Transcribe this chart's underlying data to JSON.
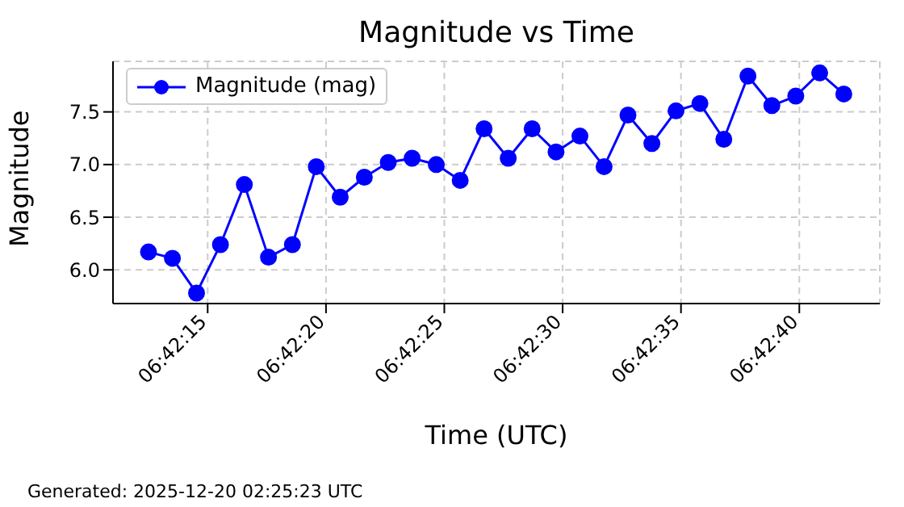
{
  "chart_data": {
    "type": "line",
    "title": "Magnitude vs Time",
    "xlabel": "Time (UTC)",
    "ylabel": "Magnitude",
    "annotations": [
      "Generated: 2025-12-20 02:25:23 UTC"
    ],
    "x": [
      6.7034722,
      6.7037528,
      6.7040361,
      6.7043167,
      6.7045972,
      6.7048806,
      6.7051611,
      6.7054417,
      6.7057222,
      6.7060056,
      6.7062861,
      6.7065667,
      6.70685,
      6.7071306,
      6.7074111,
      6.7076944,
      6.707975,
      6.7082556,
      6.7085361,
      6.7088194,
      6.7091,
      6.7093806,
      6.7096639,
      6.7099444,
      6.710225,
      6.7105083,
      6.7107889,
      6.7110694,
      6.71135,
      6.7116333
    ],
    "series": [
      {
        "name": "Magnitude (mag)",
        "color": "#0000ff",
        "values": [
          6.17,
          6.11,
          5.78,
          6.24,
          6.81,
          6.12,
          6.24,
          6.98,
          6.69,
          6.88,
          7.02,
          7.06,
          7.0,
          6.85,
          7.34,
          7.06,
          7.34,
          7.12,
          7.27,
          6.98,
          7.47,
          7.2,
          7.51,
          7.58,
          7.24,
          7.84,
          7.56,
          7.65,
          7.87,
          7.67
        ]
      }
    ],
    "xlim": [
      6.7030556,
      6.7120556
    ],
    "xticks": [
      {
        "value": 6.7041667,
        "label": "06:42:15"
      },
      {
        "value": 6.7055556,
        "label": "06:42:20"
      },
      {
        "value": 6.7069444,
        "label": "06:42:25"
      },
      {
        "value": 6.7083333,
        "label": "06:42:30"
      },
      {
        "value": 6.7097222,
        "label": "06:42:35"
      },
      {
        "value": 6.7111111,
        "label": "06:42:40"
      }
    ],
    "ylim": [
      5.68,
      7.98
    ],
    "yticks": [
      {
        "value": 6,
        "label": "6.0"
      },
      {
        "value": 6.5,
        "label": "6.5"
      },
      {
        "value": 7,
        "label": "7.0"
      },
      {
        "value": 7.5,
        "label": "7.5"
      }
    ],
    "grid": true,
    "legend": "top left",
    "marker": "circle",
    "line_style": "solid"
  }
}
